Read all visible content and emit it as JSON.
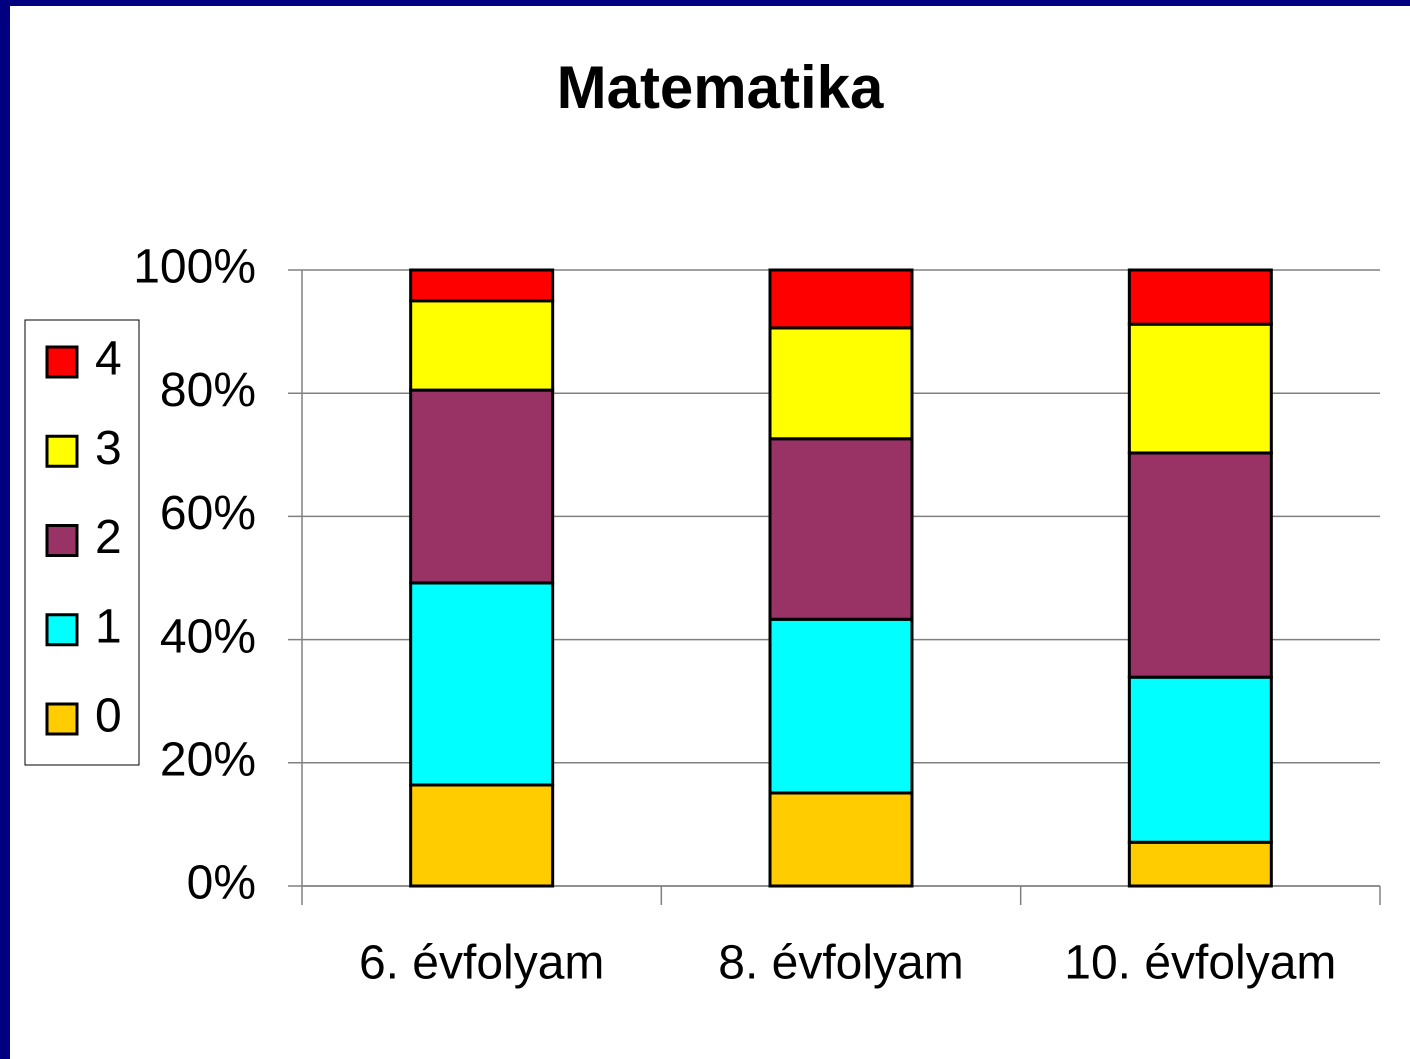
{
  "chart_data": {
    "type": "stacked_bar",
    "title": "Matematika",
    "categories": [
      "6. évfolyam",
      "8. évfolyam",
      "10. évfolyam"
    ],
    "series": [
      {
        "name": "0",
        "color": "#ffcc00",
        "values": [
          16.4,
          15.1,
          7.1
        ]
      },
      {
        "name": "1",
        "color": "#00ffff",
        "values": [
          32.8,
          28.2,
          26.8
        ]
      },
      {
        "name": "2",
        "color": "#993366",
        "values": [
          31.3,
          29.3,
          36.4
        ]
      },
      {
        "name": "3",
        "color": "#ffff00",
        "values": [
          14.5,
          18.0,
          20.9
        ]
      },
      {
        "name": "4",
        "color": "#ff0000",
        "values": [
          5.0,
          9.4,
          8.8
        ]
      }
    ],
    "ylim": [
      0,
      100
    ],
    "yticks": [
      {
        "value": 0,
        "label": "0%"
      },
      {
        "value": 20,
        "label": "20%"
      },
      {
        "value": 40,
        "label": "40%"
      },
      {
        "value": 60,
        "label": "60%"
      },
      {
        "value": 80,
        "label": "80%"
      },
      {
        "value": 100,
        "label": "100%"
      }
    ],
    "grid": true,
    "legend": "left"
  }
}
